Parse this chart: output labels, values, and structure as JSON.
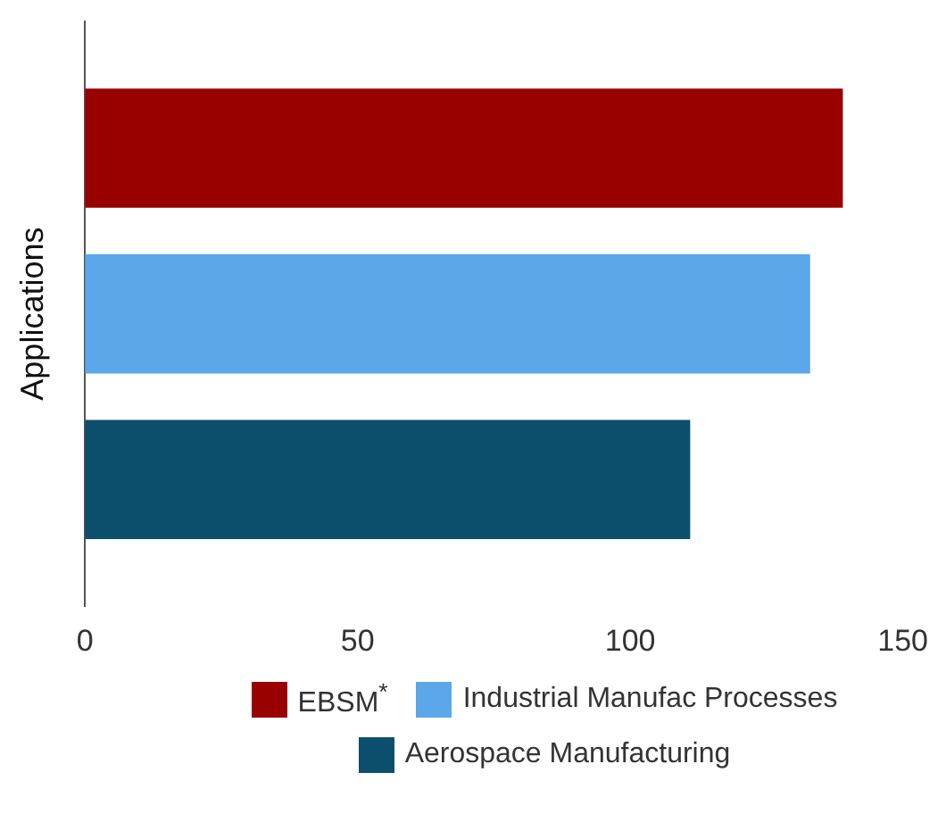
{
  "chart_data": {
    "type": "bar",
    "orientation": "horizontal",
    "ylabel": "Applications",
    "categories": [
      null
    ],
    "series": [
      {
        "name": "EBSM$^{*}$",
        "color": "#990000",
        "values": [
          139
        ]
      },
      {
        "name": "Industrial Manufac Processes",
        "color": "#5ba7ea",
        "values": [
          133
        ]
      },
      {
        "name": "Aerospace Manufacturing",
        "color": "#0b4f6c",
        "values": [
          111
        ]
      }
    ],
    "xlim": [
      0,
      150
    ],
    "xticks": [
      0,
      50,
      100,
      150
    ],
    "grid": false,
    "legend": "bottom"
  }
}
